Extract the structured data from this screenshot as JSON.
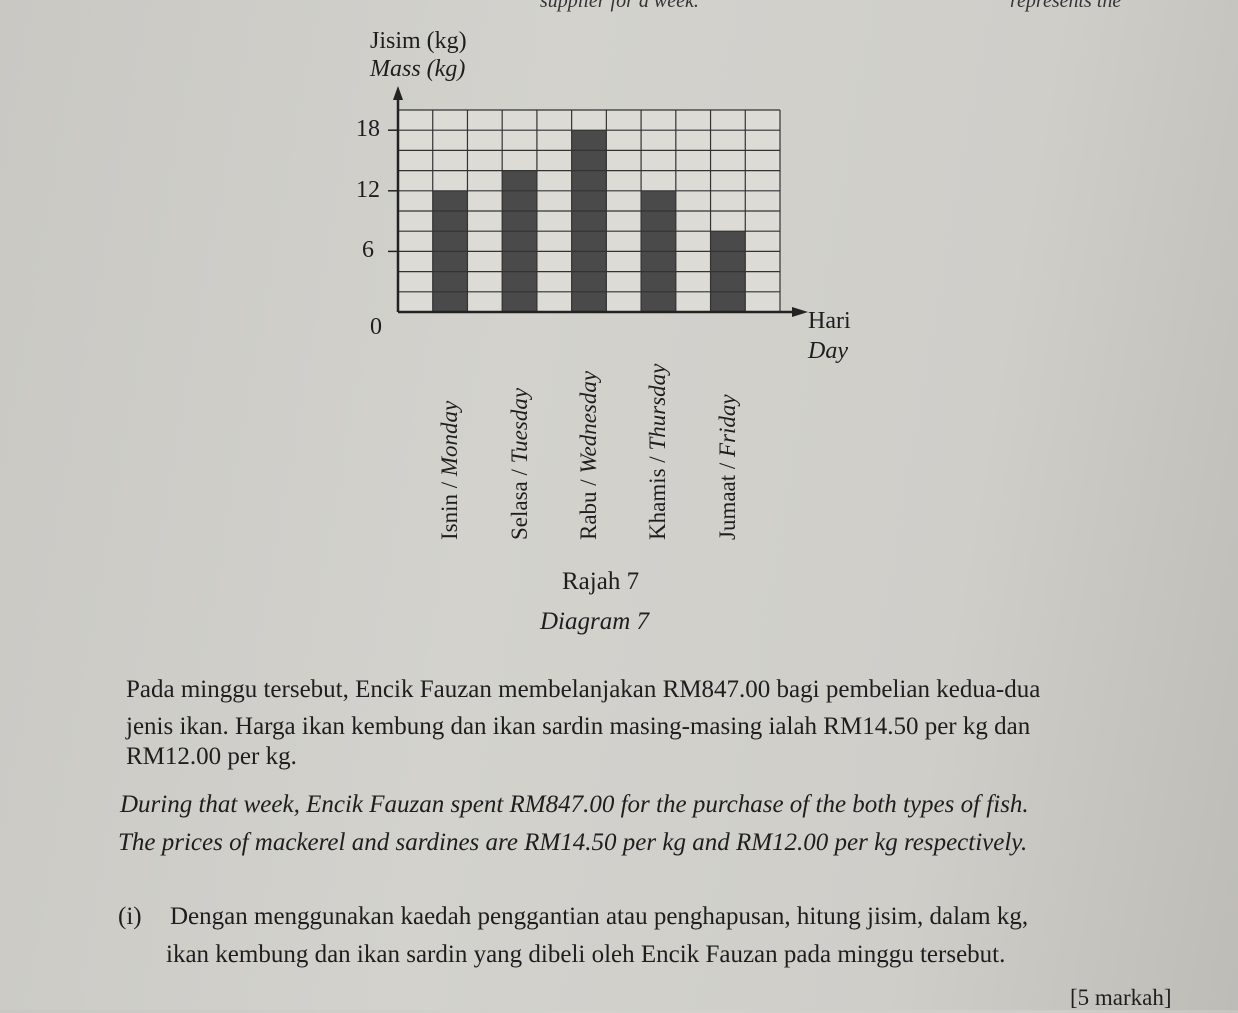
{
  "header_fragments": {
    "left": "supplier for a week.",
    "right": "represents the"
  },
  "chart_data": {
    "type": "bar",
    "title": "",
    "ylabel_ms": "Jisim (kg)",
    "ylabel_en": "Mass (kg)",
    "xlabel_ms": "Hari",
    "xlabel_en": "Day",
    "categories": [
      "Isnin / Monday",
      "Selasa / Tuesday",
      "Rabu / Wednesday",
      "Khamis / Thursday",
      "Jumaat / Friday"
    ],
    "values": [
      12,
      14,
      18,
      12,
      8
    ],
    "yticks": [
      "0",
      "6",
      "12",
      "18"
    ],
    "ylim": [
      0,
      20
    ],
    "grid": true,
    "bar_color": "#4a4a4a"
  },
  "caption": {
    "ms": "Rajah 7",
    "en": "Diagram 7"
  },
  "paragraph_ms": [
    "Pada minggu tersebut, Encik Fauzan membelanjakan RM847.00 bagi pembelian kedua-dua",
    "jenis ikan. Harga ikan kembung dan ikan sardin masing-masing ialah RM14.50 per kg dan",
    "RM12.00 per kg."
  ],
  "paragraph_en": [
    "During that week, Encik Fauzan spent RM847.00 for the purchase of the both types of fish.",
    "The prices of mackerel and sardines are RM14.50 per kg and RM12.00 per kg respectively."
  ],
  "question": {
    "number": "(i)",
    "lines": [
      "Dengan menggunakan kaedah penggantian atau penghapusan, hitung jisim, dalam kg,",
      "ikan kembung dan ikan sardin yang dibeli oleh Encik Fauzan pada minggu tersebut."
    ],
    "marks": "[5 markah]"
  }
}
